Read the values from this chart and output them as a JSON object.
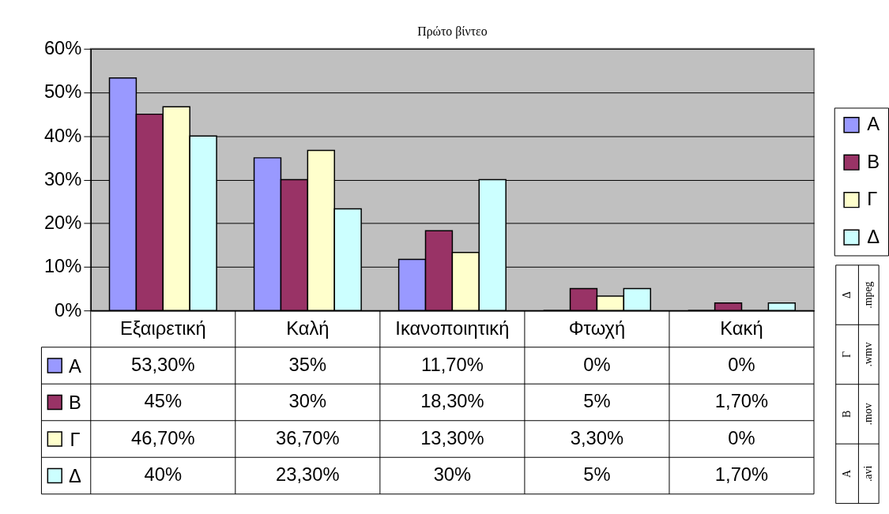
{
  "chart_data": {
    "type": "bar",
    "title": "Πρώτο βίντεο",
    "categories": [
      "Εξαιρετική",
      "Καλή",
      "Ικανοποιητική",
      "Φτωχή",
      "Κακή"
    ],
    "series": [
      {
        "name": "Α",
        "color": "#9999ff",
        "values": [
          53.3,
          35,
          11.7,
          0,
          0
        ],
        "value_labels": [
          "53,30%",
          "35%",
          "11,70%",
          "0%",
          "0%"
        ]
      },
      {
        "name": "Β",
        "color": "#993366",
        "values": [
          45,
          30,
          18.3,
          5,
          1.7
        ],
        "value_labels": [
          "45%",
          "30%",
          "18,30%",
          "5%",
          "1,70%"
        ]
      },
      {
        "name": "Γ",
        "color": "#ffffcc",
        "values": [
          46.7,
          36.7,
          13.3,
          3.3,
          0
        ],
        "value_labels": [
          "46,70%",
          "36,70%",
          "13,30%",
          "3,30%",
          "0%"
        ]
      },
      {
        "name": "Δ",
        "color": "#ccffff",
        "values": [
          40,
          23.3,
          30,
          5,
          1.7
        ],
        "value_labels": [
          "40%",
          "23,30%",
          "30%",
          "5%",
          "1,70%"
        ]
      }
    ],
    "ylim": [
      0,
      60
    ],
    "yticks": [
      {
        "value": 0,
        "label": "0%"
      },
      {
        "value": 10,
        "label": "10%"
      },
      {
        "value": 20,
        "label": "20%"
      },
      {
        "value": 30,
        "label": "30%"
      },
      {
        "value": 40,
        "label": "40%"
      },
      {
        "value": 50,
        "label": "50%"
      },
      {
        "value": 60,
        "label": "60%"
      }
    ],
    "grid": "y",
    "legend": "right",
    "annotations": [
      "Δ",
      ".mpeg",
      "Γ",
      ".wmv",
      "Β",
      ".mov",
      "Α",
      ".avi"
    ]
  }
}
